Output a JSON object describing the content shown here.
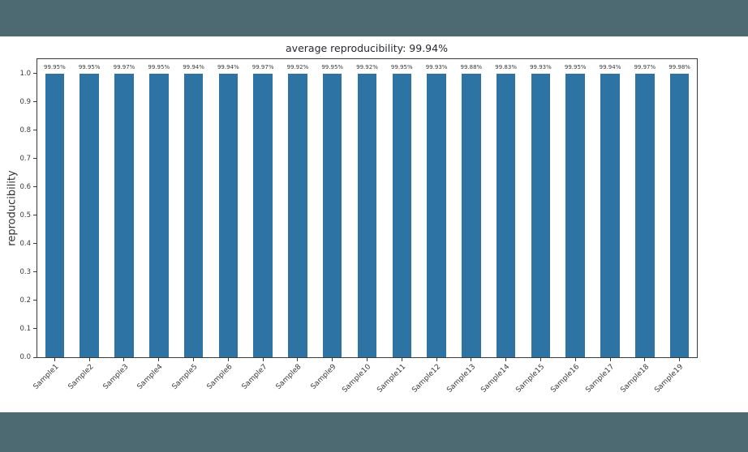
{
  "page": {
    "background": "#ffffff",
    "band_color": "#4d6971"
  },
  "chart_data": {
    "type": "bar",
    "title": "average reproducibility: 99.94%",
    "ylabel": "reproducibility",
    "xlabel": "",
    "categories": [
      "Sample1",
      "Sample2",
      "Sample3",
      "Sample4",
      "Sample5",
      "Sample6",
      "Sample7",
      "Sample8",
      "Sample9",
      "Sample10",
      "Sample11",
      "Sample12",
      "Sample13",
      "Sample14",
      "Sample15",
      "Sample16",
      "Sample17",
      "Sample18",
      "Sample19"
    ],
    "values": [
      99.95,
      99.95,
      99.97,
      99.95,
      99.94,
      99.94,
      99.97,
      99.92,
      99.95,
      99.92,
      99.95,
      99.93,
      99.88,
      99.83,
      99.93,
      99.95,
      99.94,
      99.97,
      99.98
    ],
    "values_unit": "%",
    "bar_labels": [
      "99.95%",
      "99.95%",
      "99.97%",
      "99.95%",
      "99.94%",
      "99.94%",
      "99.97%",
      "99.92%",
      "99.95%",
      "99.92%",
      "99.95%",
      "99.93%",
      "99.88%",
      "99.83%",
      "99.93%",
      "99.95%",
      "99.94%",
      "99.97%",
      "99.98%"
    ],
    "average_percent": 99.94,
    "bar_color": "#2d74a4",
    "axis_color": "#3a3a3a",
    "ylim": [
      0,
      1.05
    ],
    "ytick_values": [
      0.0,
      0.1,
      0.2,
      0.3,
      0.4,
      0.5,
      0.6,
      0.7,
      0.8,
      0.9,
      1.0
    ],
    "ytick_labels": [
      "0.0",
      "0.1",
      "0.2",
      "0.3",
      "0.4",
      "0.5",
      "0.6",
      "0.7",
      "0.8",
      "0.9",
      "1.0"
    ],
    "x_tick_rotation_deg": 45,
    "grid": false,
    "legend": "none",
    "bar_width_fraction": 0.55
  }
}
